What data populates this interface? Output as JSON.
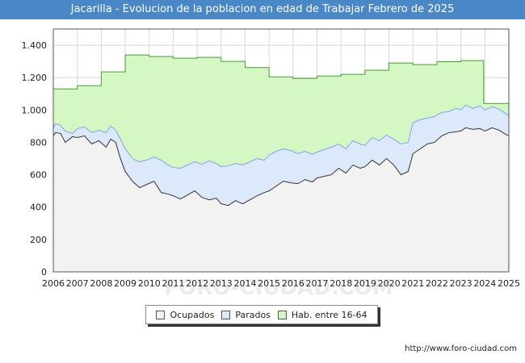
{
  "header": {
    "title": "Jacarilla - Evolucion de la poblacion en edad de Trabajar Febrero de 2025"
  },
  "footer": {
    "source_url": "http://www.foro-ciudad.com",
    "watermark": "FORO-CIUDAD.COM"
  },
  "colors": {
    "hab": "#d4f7c4",
    "hab_line": "#4a9a3a",
    "parados": "#dce9fb",
    "parados_line": "#7fa8d8",
    "ocupados": "#f2f2f2",
    "ocupados_line": "#333333",
    "grid": "#d8d8d8"
  },
  "chart_data": {
    "type": "area",
    "title": "Jacarilla - Evolucion de la poblacion en edad de Trabajar Febrero de 2025",
    "xlabel": "",
    "ylabel": "",
    "xlim": [
      2006,
      2025
    ],
    "ylim": [
      0,
      1500
    ],
    "y_ticks": [
      {
        "value": 0,
        "label": "0"
      },
      {
        "value": 200,
        "label": "200"
      },
      {
        "value": 400,
        "label": "400"
      },
      {
        "value": 600,
        "label": "600"
      },
      {
        "value": 800,
        "label": "800"
      },
      {
        "value": 1000,
        "label": "1.000"
      },
      {
        "value": 1200,
        "label": "1.200"
      },
      {
        "value": 1400,
        "label": "1.400"
      }
    ],
    "x_ticks": [
      "2006",
      "2007",
      "2008",
      "2009",
      "2010",
      "2011",
      "2012",
      "2013",
      "2014",
      "2015",
      "2016",
      "2017",
      "2018",
      "2019",
      "2020",
      "2021",
      "2022",
      "2023",
      "2024",
      "2025"
    ],
    "grid": true,
    "legend_position": "bottom",
    "series": [
      {
        "name": "Hab. entre 16-64",
        "type": "step",
        "points": [
          [
            2006.0,
            1130
          ],
          [
            2007.0,
            1150
          ],
          [
            2008.0,
            1235
          ],
          [
            2009.0,
            1340
          ],
          [
            2010.0,
            1330
          ],
          [
            2011.0,
            1320
          ],
          [
            2012.0,
            1325
          ],
          [
            2013.0,
            1300
          ],
          [
            2014.0,
            1262
          ],
          [
            2015.0,
            1205
          ],
          [
            2016.0,
            1195
          ],
          [
            2017.0,
            1210
          ],
          [
            2018.0,
            1220
          ],
          [
            2019.0,
            1245
          ],
          [
            2020.0,
            1290
          ],
          [
            2021.0,
            1280
          ],
          [
            2022.0,
            1298
          ],
          [
            2023.0,
            1305
          ],
          [
            2023.95,
            1040
          ],
          [
            2025.0,
            1040
          ]
        ]
      },
      {
        "name": "Parados",
        "type": "line",
        "points": [
          [
            2006.0,
            890
          ],
          [
            2006.1,
            915
          ],
          [
            2006.3,
            905
          ],
          [
            2006.5,
            870
          ],
          [
            2006.8,
            855
          ],
          [
            2007.0,
            885
          ],
          [
            2007.3,
            895
          ],
          [
            2007.6,
            860
          ],
          [
            2007.9,
            875
          ],
          [
            2008.2,
            860
          ],
          [
            2008.4,
            900
          ],
          [
            2008.6,
            875
          ],
          [
            2008.8,
            820
          ],
          [
            2009.0,
            760
          ],
          [
            2009.3,
            700
          ],
          [
            2009.6,
            680
          ],
          [
            2009.9,
            690
          ],
          [
            2010.2,
            710
          ],
          [
            2010.5,
            690
          ],
          [
            2010.8,
            660
          ],
          [
            2011.0,
            645
          ],
          [
            2011.3,
            640
          ],
          [
            2011.6,
            660
          ],
          [
            2011.9,
            680
          ],
          [
            2012.2,
            665
          ],
          [
            2012.5,
            685
          ],
          [
            2012.8,
            670
          ],
          [
            2013.0,
            650
          ],
          [
            2013.3,
            655
          ],
          [
            2013.6,
            670
          ],
          [
            2013.9,
            660
          ],
          [
            2014.2,
            680
          ],
          [
            2014.5,
            700
          ],
          [
            2014.8,
            690
          ],
          [
            2015.0,
            720
          ],
          [
            2015.3,
            745
          ],
          [
            2015.6,
            760
          ],
          [
            2015.9,
            750
          ],
          [
            2016.2,
            730
          ],
          [
            2016.5,
            745
          ],
          [
            2016.8,
            725
          ],
          [
            2017.0,
            740
          ],
          [
            2017.3,
            755
          ],
          [
            2017.6,
            770
          ],
          [
            2017.9,
            790
          ],
          [
            2018.2,
            760
          ],
          [
            2018.5,
            810
          ],
          [
            2018.8,
            790
          ],
          [
            2019.0,
            780
          ],
          [
            2019.3,
            830
          ],
          [
            2019.6,
            810
          ],
          [
            2019.9,
            845
          ],
          [
            2020.2,
            820
          ],
          [
            2020.5,
            790
          ],
          [
            2020.8,
            800
          ],
          [
            2021.0,
            920
          ],
          [
            2021.3,
            940
          ],
          [
            2021.6,
            950
          ],
          [
            2021.9,
            960
          ],
          [
            2022.2,
            985
          ],
          [
            2022.5,
            990
          ],
          [
            2022.8,
            1010
          ],
          [
            2023.0,
            1000
          ],
          [
            2023.2,
            1030
          ],
          [
            2023.5,
            1010
          ],
          [
            2023.8,
            1025
          ],
          [
            2024.0,
            1000
          ],
          [
            2024.3,
            1020
          ],
          [
            2024.6,
            1005
          ],
          [
            2024.8,
            985
          ],
          [
            2025.0,
            965
          ]
        ]
      },
      {
        "name": "Ocupados",
        "type": "line",
        "points": [
          [
            2006.0,
            840
          ],
          [
            2006.1,
            860
          ],
          [
            2006.3,
            855
          ],
          [
            2006.5,
            800
          ],
          [
            2006.8,
            835
          ],
          [
            2007.0,
            830
          ],
          [
            2007.3,
            840
          ],
          [
            2007.6,
            790
          ],
          [
            2007.9,
            810
          ],
          [
            2008.2,
            770
          ],
          [
            2008.4,
            820
          ],
          [
            2008.6,
            800
          ],
          [
            2008.8,
            700
          ],
          [
            2009.0,
            620
          ],
          [
            2009.3,
            560
          ],
          [
            2009.6,
            520
          ],
          [
            2009.9,
            540
          ],
          [
            2010.2,
            560
          ],
          [
            2010.5,
            490
          ],
          [
            2010.8,
            480
          ],
          [
            2011.0,
            470
          ],
          [
            2011.3,
            450
          ],
          [
            2011.6,
            475
          ],
          [
            2011.9,
            500
          ],
          [
            2012.2,
            460
          ],
          [
            2012.5,
            445
          ],
          [
            2012.8,
            455
          ],
          [
            2013.0,
            420
          ],
          [
            2013.3,
            410
          ],
          [
            2013.6,
            440
          ],
          [
            2013.9,
            420
          ],
          [
            2014.2,
            445
          ],
          [
            2014.5,
            470
          ],
          [
            2014.8,
            490
          ],
          [
            2015.0,
            500
          ],
          [
            2015.3,
            530
          ],
          [
            2015.6,
            560
          ],
          [
            2015.9,
            550
          ],
          [
            2016.2,
            545
          ],
          [
            2016.5,
            570
          ],
          [
            2016.8,
            555
          ],
          [
            2017.0,
            580
          ],
          [
            2017.3,
            590
          ],
          [
            2017.6,
            600
          ],
          [
            2017.9,
            640
          ],
          [
            2018.2,
            610
          ],
          [
            2018.5,
            660
          ],
          [
            2018.8,
            640
          ],
          [
            2019.0,
            650
          ],
          [
            2019.3,
            690
          ],
          [
            2019.6,
            660
          ],
          [
            2019.9,
            700
          ],
          [
            2020.2,
            660
          ],
          [
            2020.5,
            600
          ],
          [
            2020.8,
            620
          ],
          [
            2021.0,
            730
          ],
          [
            2021.3,
            760
          ],
          [
            2021.6,
            790
          ],
          [
            2021.9,
            800
          ],
          [
            2022.2,
            840
          ],
          [
            2022.5,
            860
          ],
          [
            2022.8,
            865
          ],
          [
            2023.0,
            870
          ],
          [
            2023.2,
            890
          ],
          [
            2023.5,
            880
          ],
          [
            2023.8,
            885
          ],
          [
            2024.0,
            870
          ],
          [
            2024.3,
            890
          ],
          [
            2024.6,
            875
          ],
          [
            2024.8,
            855
          ],
          [
            2025.0,
            840
          ]
        ]
      }
    ]
  },
  "legend": {
    "ocupados": "Ocupados",
    "parados": "Parados",
    "hab": "Hab. entre 16-64"
  }
}
